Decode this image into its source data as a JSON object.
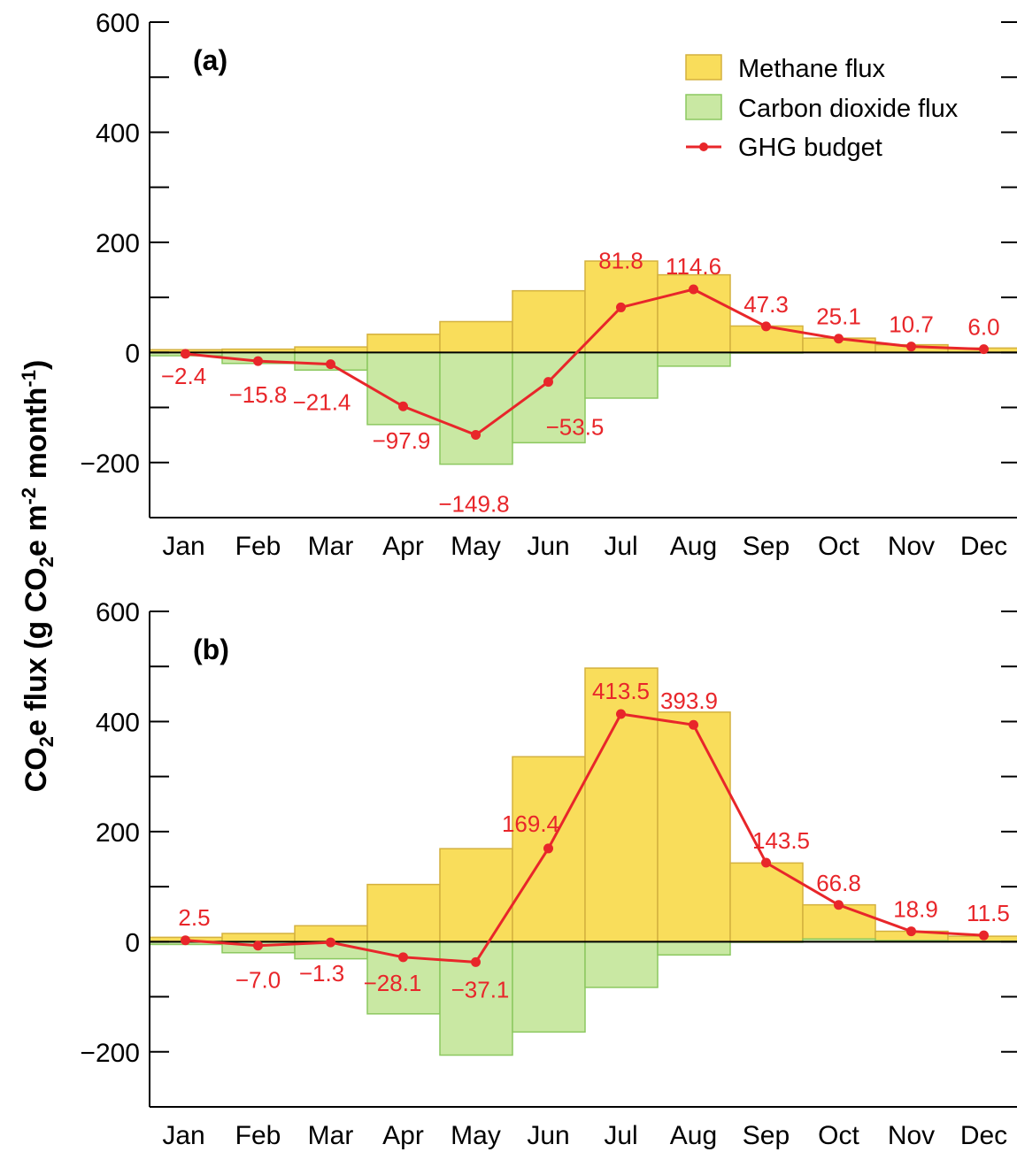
{
  "chart_data": [
    {
      "type": "bar",
      "panel_label": "(a)",
      "categories": [
        "Jan",
        "Feb",
        "Mar",
        "Apr",
        "May",
        "Jun",
        "Jul",
        "Aug",
        "Sep",
        "Oct",
        "Nov",
        "Dec"
      ],
      "series": [
        {
          "name": "Methane flux",
          "kind": "bar",
          "color": "#f9dd5b",
          "values": [
            5,
            6,
            10,
            33,
            56,
            112,
            166,
            141,
            48,
            26,
            14,
            8
          ]
        },
        {
          "name": "Carbon dioxide flux",
          "kind": "bar",
          "color": "#c9e8a3",
          "values": [
            -6,
            -20,
            -32,
            -131,
            -203,
            -164,
            -83,
            -25,
            -1,
            0,
            0,
            0
          ]
        },
        {
          "name": "GHG budget",
          "kind": "line",
          "color": "#e8262a",
          "values": [
            -2.4,
            -15.8,
            -21.4,
            -97.9,
            -149.8,
            -53.5,
            81.8,
            114.6,
            47.3,
            25.1,
            10.7,
            6.0
          ]
        }
      ],
      "budget_labels": [
        "−2.4",
        "−15.8",
        "−21.4",
        "−97.9",
        "−149.8",
        "−53.5",
        "81.8",
        "114.6",
        "47.3",
        "25.1",
        "10.7",
        "6.0"
      ],
      "ylim": [
        -300,
        600
      ],
      "yticks": [
        -200,
        0,
        200,
        400,
        600
      ],
      "ytick_labels": [
        "−200",
        "0",
        "200",
        "400",
        "600"
      ],
      "legend": "top-right"
    },
    {
      "type": "bar",
      "panel_label": "(b)",
      "categories": [
        "Jan",
        "Feb",
        "Mar",
        "Apr",
        "May",
        "Jun",
        "Jul",
        "Aug",
        "Sep",
        "Oct",
        "Nov",
        "Dec"
      ],
      "series": [
        {
          "name": "Methane flux",
          "kind": "bar",
          "color": "#f9dd5b",
          "values": [
            8,
            15,
            29,
            104,
            169,
            336,
            497,
            417,
            143,
            67,
            19,
            10
          ]
        },
        {
          "name": "Carbon dioxide flux",
          "kind": "bar",
          "color": "#c9e8a3",
          "values": [
            -5,
            -20,
            -31,
            -131,
            -206,
            -164,
            -83,
            -24,
            -1,
            5,
            2,
            1
          ]
        },
        {
          "name": "GHG budget",
          "kind": "line",
          "color": "#e8262a",
          "values": [
            2.5,
            -7.0,
            -1.3,
            -28.1,
            -37.1,
            169.4,
            413.5,
            393.9,
            143.5,
            66.8,
            18.9,
            11.5
          ]
        }
      ],
      "budget_labels": [
        "2.5",
        "−7.0",
        "−1.3",
        "−28.1",
        "−37.1",
        "169.4",
        "413.5",
        "393.9",
        "143.5",
        "66.8",
        "18.9",
        "11.5"
      ],
      "ylim": [
        -300,
        600
      ],
      "yticks": [
        -200,
        0,
        200,
        400,
        600
      ],
      "ytick_labels": [
        "−200",
        "0",
        "200",
        "400",
        "600"
      ]
    }
  ],
  "ylabel": {
    "main": "CO",
    "sub1": "2",
    "mid": "e flux (g CO",
    "sub2": "2",
    "tail": "e m",
    "sup1": "-2",
    "tail2": " month",
    "sup2": "-1",
    "close": ")"
  },
  "legend_items": [
    "Methane flux",
    "Carbon dioxide flux",
    "GHG budget"
  ]
}
